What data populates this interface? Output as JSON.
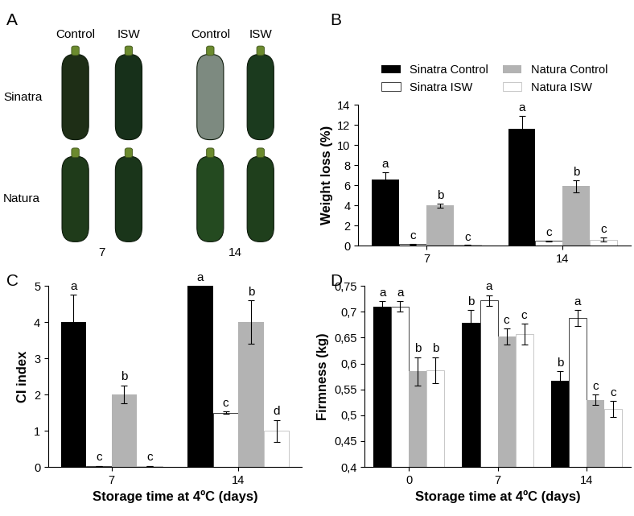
{
  "photo_panel": {
    "panel": "A",
    "columns": [
      "Control",
      "ISW",
      "Control",
      "ISW"
    ],
    "rows": [
      "Sinatra",
      "Natura"
    ],
    "days": [
      "7",
      "14"
    ]
  },
  "chart_data": [
    {
      "type": "bar",
      "panel": "B",
      "y_label": "Weight loss (%)",
      "categories": [
        "7",
        "14"
      ],
      "ylim": [
        0,
        14
      ],
      "yticks": [
        0,
        2,
        4,
        6,
        8,
        10,
        12,
        14
      ],
      "legend": "upper center",
      "series": [
        {
          "name": "Sinatra Control",
          "color": "#000000",
          "values": [
            6.6,
            11.6
          ],
          "errors": [
            0.7,
            1.3
          ],
          "letters": [
            "a",
            "a"
          ]
        },
        {
          "name": "Sinatra ISW",
          "color": "#ffffff",
          "values": [
            0.15,
            0.45
          ],
          "errors": [
            0.05,
            0.05
          ],
          "letters": [
            "c",
            "c"
          ]
        },
        {
          "name": "Natura Control",
          "color": "#b3b3b3",
          "values": [
            4.0,
            5.9
          ],
          "errors": [
            0.2,
            0.6
          ],
          "letters": [
            "b",
            "b"
          ]
        },
        {
          "name": "Natura ISW",
          "color": "#ffffff",
          "values": [
            0.05,
            0.6
          ],
          "errors": [
            0.02,
            0.2
          ],
          "letters": [
            "c",
            "c"
          ]
        }
      ]
    },
    {
      "type": "bar",
      "panel": "C",
      "x_label": "Storage time at 4ºC (days)",
      "y_label": "CI index",
      "categories": [
        "7",
        "14"
      ],
      "ylim": [
        0,
        5
      ],
      "yticks": [
        0,
        1,
        2,
        3,
        4,
        5
      ],
      "series": [
        {
          "name": "Sinatra Control",
          "color": "#000000",
          "values": [
            4.0,
            5.0
          ],
          "errors": [
            0.75,
            0.0
          ],
          "letters": [
            "a",
            "a"
          ]
        },
        {
          "name": "Sinatra ISW",
          "color": "#ffffff",
          "values": [
            0.03,
            1.5
          ],
          "errors": [
            0.0,
            0.03
          ],
          "letters": [
            "c",
            "c"
          ]
        },
        {
          "name": "Natura Control",
          "color": "#b3b3b3",
          "values": [
            2.0,
            4.0
          ],
          "errors": [
            0.25,
            0.6
          ],
          "letters": [
            "b",
            "b"
          ]
        },
        {
          "name": "Natura ISW",
          "color": "#ffffff",
          "values": [
            0.03,
            1.0
          ],
          "errors": [
            0.0,
            0.3
          ],
          "letters": [
            "c",
            "d"
          ]
        }
      ]
    },
    {
      "type": "bar",
      "panel": "D",
      "x_label": "Storage time at 4ºC (days)",
      "y_label": "Firmness (kg)",
      "categories": [
        "0",
        "7",
        "14"
      ],
      "ylim": [
        0.4,
        0.75
      ],
      "yticks": [
        {
          "value": 0.4,
          "label": "0,4"
        },
        {
          "value": 0.45,
          "label": "0,45"
        },
        {
          "value": 0.5,
          "label": "0,5"
        },
        {
          "value": 0.55,
          "label": "0,55"
        },
        {
          "value": 0.6,
          "label": "0,6"
        },
        {
          "value": 0.65,
          "label": "0,65"
        },
        {
          "value": 0.7,
          "label": "0,7"
        },
        {
          "value": 0.75,
          "label": "0,75"
        }
      ],
      "series": [
        {
          "name": "Sinatra Control",
          "color": "#000000",
          "values": [
            0.71,
            0.678,
            0.567
          ],
          "errors": [
            0.01,
            0.025,
            0.018
          ],
          "letters": [
            "a",
            "b",
            "b"
          ]
        },
        {
          "name": "Sinatra ISW",
          "color": "#ffffff",
          "values": [
            0.71,
            0.722,
            0.688
          ],
          "errors": [
            0.01,
            0.01,
            0.015
          ],
          "letters": [
            "a",
            "a",
            "a"
          ]
        },
        {
          "name": "Natura Control",
          "color": "#b3b3b3",
          "values": [
            0.585,
            0.652,
            0.53
          ],
          "errors": [
            0.027,
            0.015,
            0.01
          ],
          "letters": [
            "b",
            "c",
            "c"
          ]
        },
        {
          "name": "Natura ISW",
          "color": "#ffffff",
          "values": [
            0.587,
            0.657,
            0.512
          ],
          "errors": [
            0.025,
            0.02,
            0.015
          ],
          "letters": [
            "b",
            "c",
            "c"
          ]
        }
      ]
    }
  ]
}
